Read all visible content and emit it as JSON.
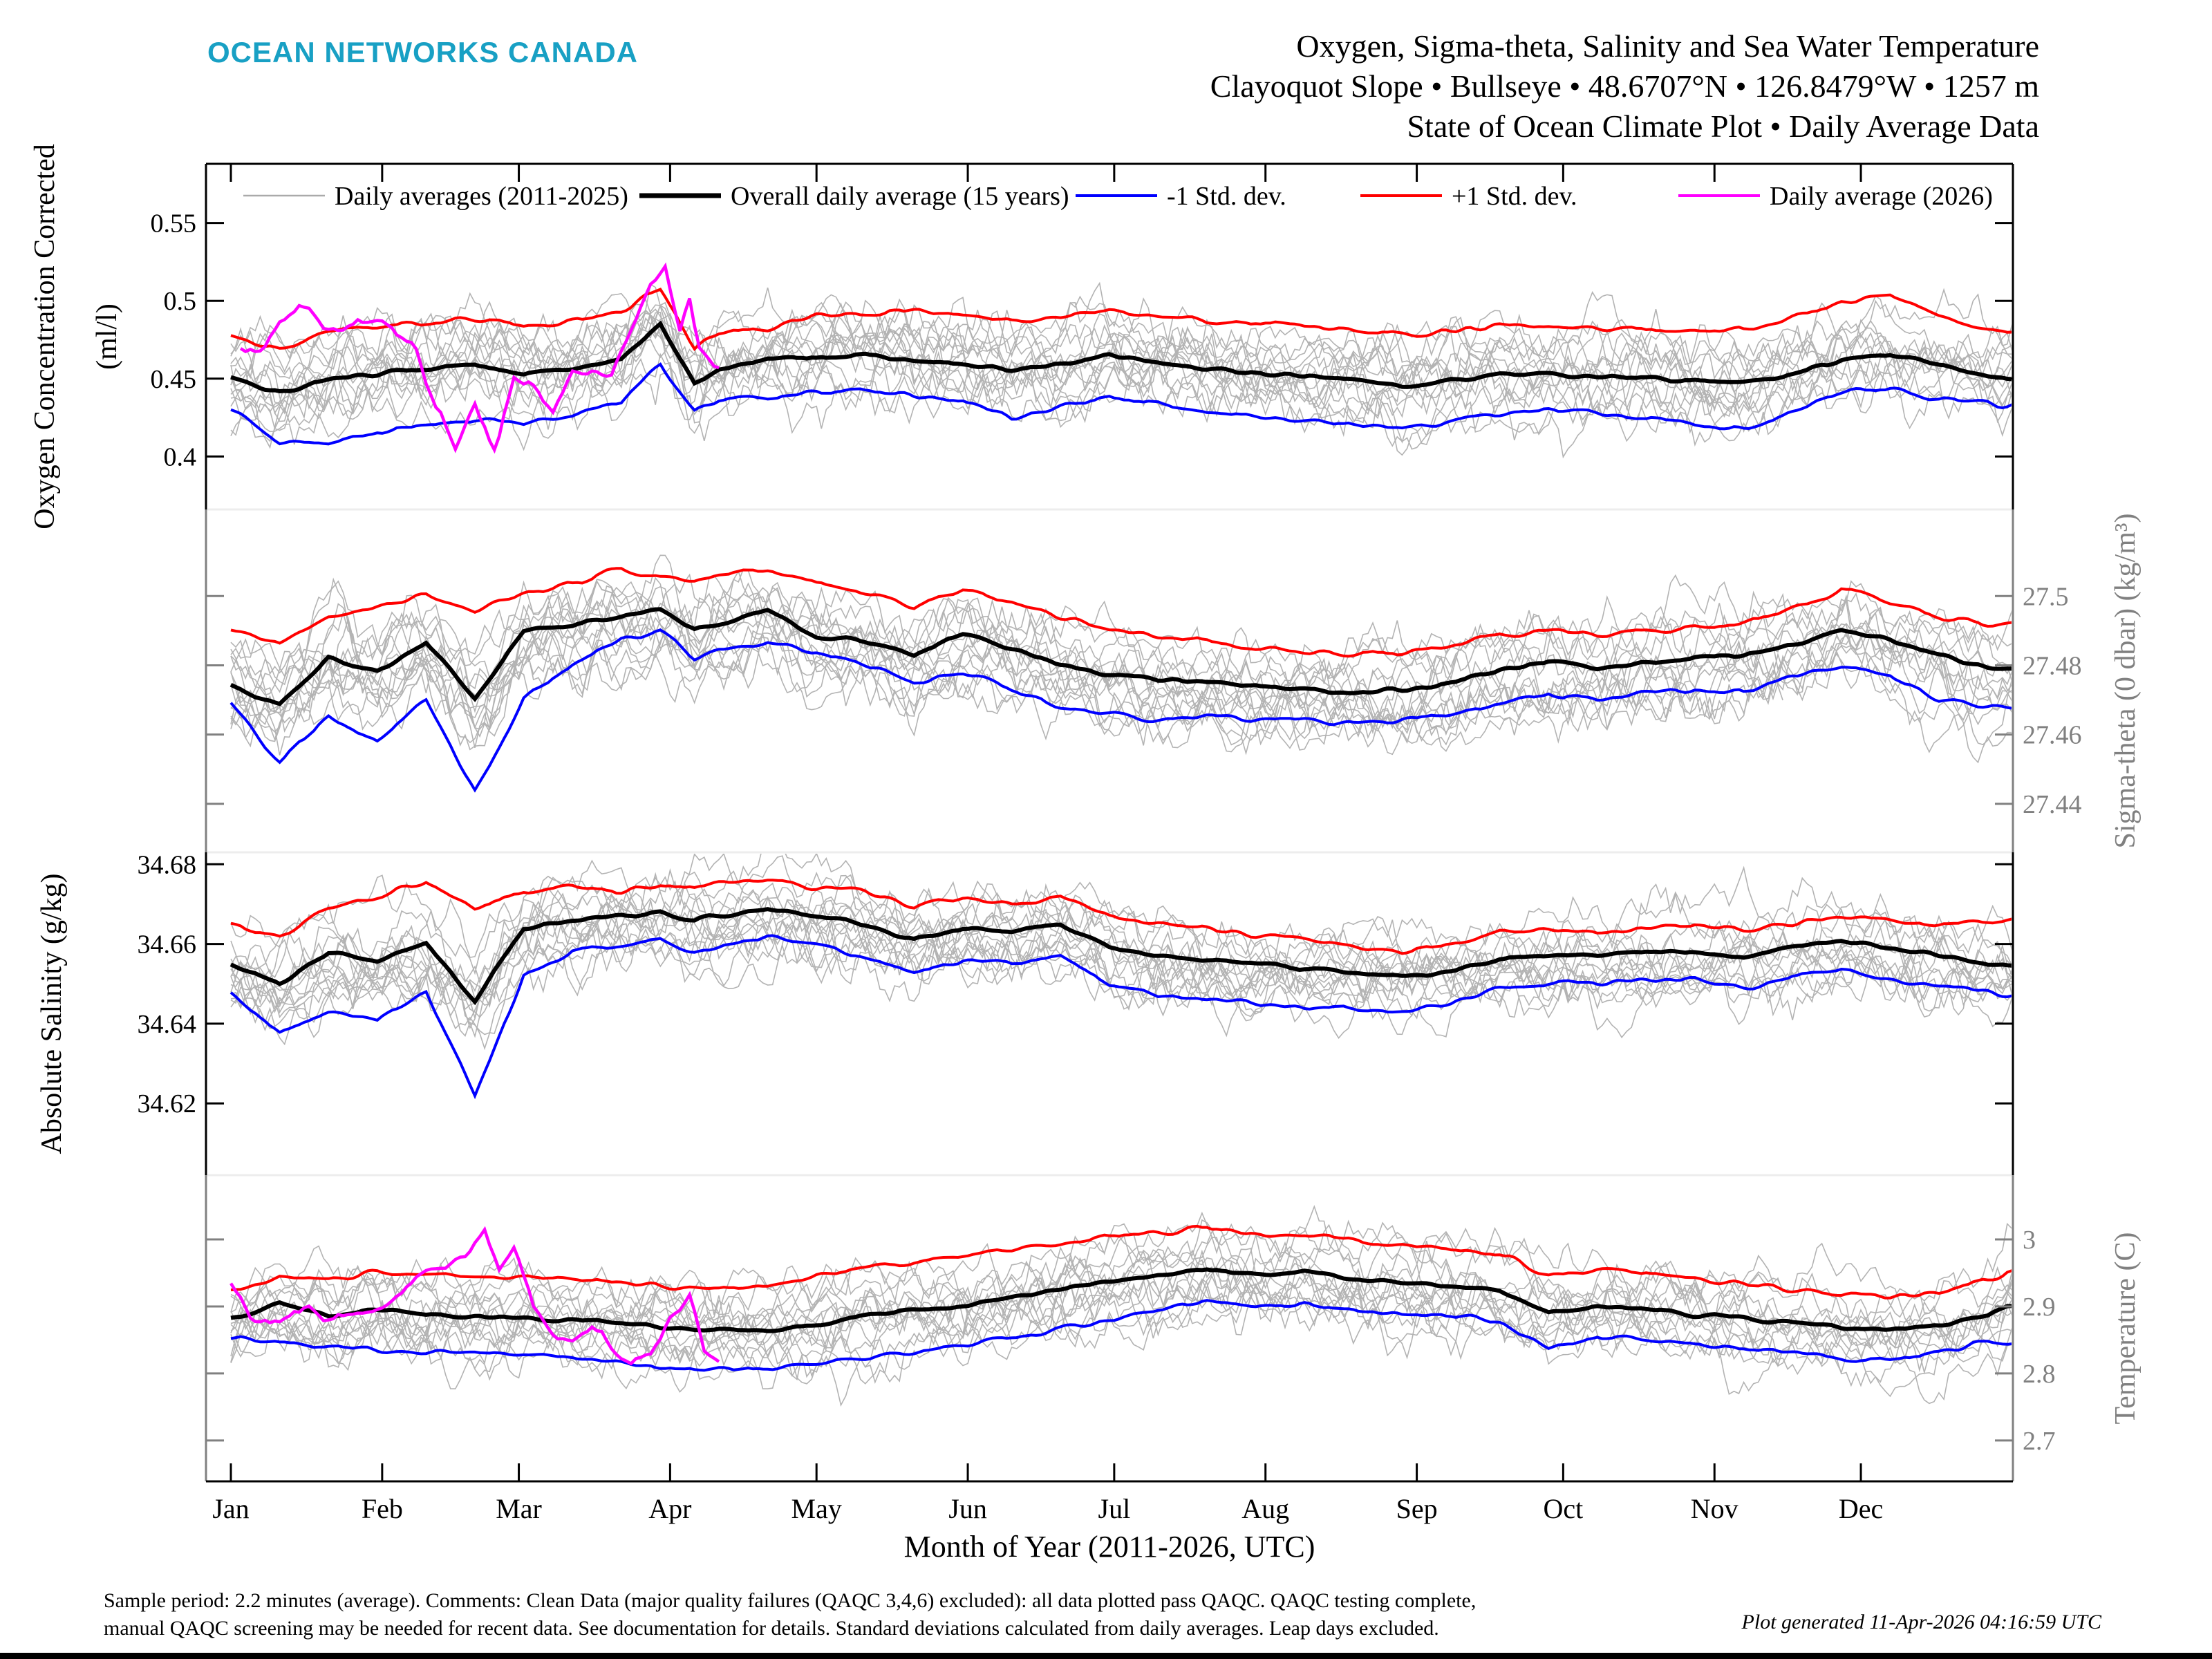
{
  "brand": {
    "name": "OCEAN NETWORKS CANADA",
    "color": "#18a0c4"
  },
  "title": {
    "line1": "Oxygen, Sigma-theta, Salinity and Sea Water Temperature",
    "line2": "Clayoquot Slope • Bullseye • 48.6707°N • 126.8479°W • 1257 m",
    "line3": "State of Ocean Climate Plot • Daily Average Data"
  },
  "legend": [
    {
      "label": "Daily averages (2011-2025)",
      "color": "#aaaaaa",
      "width": 2.5
    },
    {
      "label": "Overall daily average (15 years)",
      "color": "#000000",
      "width": 7
    },
    {
      "label": "-1 Std. dev.",
      "color": "#0000ff",
      "width": 4
    },
    {
      "label": "+1 Std. dev.",
      "color": "#ff0000",
      "width": 4
    },
    {
      "label": "Daily average (2026)",
      "color": "#ff00ff",
      "width": 4
    }
  ],
  "xaxis": {
    "label": "Month of Year (2011-2026, UTC)",
    "months": [
      "Jan",
      "Feb",
      "Mar",
      "Apr",
      "May",
      "Jun",
      "Jul",
      "Aug",
      "Sep",
      "Oct",
      "Nov",
      "Dec"
    ],
    "month_start_days": [
      0,
      31,
      59,
      90,
      120,
      151,
      181,
      212,
      243,
      273,
      304,
      334
    ]
  },
  "footer": {
    "line1": "Sample period: 2.2 minutes (average). Comments: Clean Data (major quality failures (QAQC 3,4,6) excluded): all data plotted pass QAQC. QAQC testing complete,",
    "line2": "manual QAQC screening may be needed for recent data. See documentation for details. Standard deviations calculated from daily averages. Leap days excluded.",
    "generated": "Plot generated 11-Apr-2026 04:16:59 UTC"
  },
  "chart_data": {
    "type": "line",
    "x_unit": "day_of_year",
    "sample_days": [
      0,
      10,
      20,
      30,
      40,
      50,
      60,
      70,
      80,
      88,
      95,
      100,
      110,
      120,
      130,
      140,
      150,
      160,
      170,
      180,
      190,
      200,
      210,
      220,
      230,
      240,
      250,
      260,
      270,
      280,
      290,
      300,
      310,
      320,
      330,
      340,
      350,
      360,
      364
    ],
    "panels": [
      {
        "id": "oxygen",
        "label": "Oxygen Concentration Corrected",
        "unit": "(ml/l)",
        "axis_side": "left",
        "axis_color": "#000000",
        "ticks": [
          0.4,
          0.45,
          0.5,
          0.55
        ],
        "tick_labels": [
          "0.4",
          "0.45",
          "0.5",
          "0.55"
        ],
        "ylim": [
          0.366,
          0.588
        ],
        "series": {
          "mean": [
            0.45,
            0.441,
            0.45,
            0.453,
            0.456,
            0.459,
            0.453,
            0.457,
            0.463,
            0.486,
            0.447,
            0.455,
            0.463,
            0.464,
            0.466,
            0.462,
            0.46,
            0.456,
            0.459,
            0.465,
            0.46,
            0.456,
            0.454,
            0.452,
            0.45,
            0.444,
            0.449,
            0.452,
            0.453,
            0.452,
            0.45,
            0.449,
            0.447,
            0.453,
            0.462,
            0.466,
            0.459,
            0.452,
            0.45
          ],
          "plus1": [
            0.477,
            0.47,
            0.48,
            0.484,
            0.486,
            0.488,
            0.484,
            0.487,
            0.494,
            0.507,
            0.468,
            0.48,
            0.483,
            0.49,
            0.492,
            0.494,
            0.49,
            0.487,
            0.49,
            0.494,
            0.49,
            0.487,
            0.486,
            0.484,
            0.482,
            0.478,
            0.481,
            0.484,
            0.485,
            0.483,
            0.482,
            0.481,
            0.482,
            0.488,
            0.498,
            0.503,
            0.492,
            0.482,
            0.479
          ],
          "minus1": [
            0.431,
            0.409,
            0.408,
            0.416,
            0.421,
            0.424,
            0.421,
            0.427,
            0.435,
            0.46,
            0.43,
            0.436,
            0.437,
            0.441,
            0.443,
            0.44,
            0.436,
            0.425,
            0.432,
            0.438,
            0.434,
            0.429,
            0.426,
            0.424,
            0.421,
            0.417,
            0.422,
            0.427,
            0.43,
            0.427,
            0.424,
            0.421,
            0.417,
            0.428,
            0.441,
            0.443,
            0.437,
            0.434,
            0.432
          ],
          "current_days": [
            2,
            6,
            10,
            14,
            18,
            22,
            26,
            30,
            34,
            38,
            42,
            46,
            50,
            54,
            58,
            62,
            66,
            70,
            74,
            78,
            82,
            86,
            89,
            92,
            94,
            96,
            98,
            100
          ],
          "current": [
            0.468,
            0.471,
            0.488,
            0.499,
            0.489,
            0.479,
            0.488,
            0.487,
            0.478,
            0.468,
            0.43,
            0.408,
            0.432,
            0.404,
            0.45,
            0.447,
            0.428,
            0.452,
            0.455,
            0.452,
            0.482,
            0.512,
            0.523,
            0.478,
            0.502,
            0.47,
            0.462,
            0.457
          ]
        }
      },
      {
        "id": "sigma-theta",
        "label": "Sigma-theta (0 dbar) (kg/m³)",
        "unit": "",
        "axis_side": "right",
        "axis_color": "#808080",
        "ticks": [
          27.44,
          27.46,
          27.48,
          27.5
        ],
        "tick_labels": [
          "27.44",
          "27.46",
          "27.48",
          "27.5"
        ],
        "ylim": [
          27.426,
          27.525
        ],
        "series": {
          "mean": [
            27.474,
            27.469,
            27.482,
            27.478,
            27.487,
            27.471,
            27.49,
            27.492,
            27.494,
            27.496,
            27.49,
            27.492,
            27.496,
            27.488,
            27.487,
            27.483,
            27.489,
            27.485,
            27.48,
            27.477,
            27.476,
            27.475,
            27.474,
            27.473,
            27.472,
            27.473,
            27.475,
            27.479,
            27.481,
            27.479,
            27.481,
            27.482,
            27.483,
            27.486,
            27.49,
            27.487,
            27.483,
            27.479,
            27.479
          ],
          "plus1": [
            27.49,
            27.486,
            27.495,
            27.497,
            27.5,
            27.496,
            27.501,
            27.503,
            27.508,
            27.505,
            27.504,
            27.506,
            27.508,
            27.503,
            27.501,
            27.497,
            27.502,
            27.498,
            27.494,
            27.49,
            27.489,
            27.487,
            27.485,
            27.484,
            27.483,
            27.484,
            27.486,
            27.489,
            27.49,
            27.489,
            27.49,
            27.491,
            27.492,
            27.496,
            27.502,
            27.498,
            27.494,
            27.492,
            27.492
          ],
          "minus1": [
            27.469,
            27.452,
            27.465,
            27.458,
            27.47,
            27.444,
            27.47,
            27.48,
            27.487,
            27.49,
            27.482,
            27.485,
            27.487,
            27.483,
            27.48,
            27.475,
            27.478,
            27.473,
            27.468,
            27.466,
            27.464,
            27.465,
            27.464,
            27.464,
            27.463,
            27.464,
            27.466,
            27.469,
            27.472,
            27.47,
            27.472,
            27.473,
            27.472,
            27.477,
            27.48,
            27.477,
            27.47,
            27.468,
            27.468
          ],
          "current_days": [],
          "current": []
        }
      },
      {
        "id": "salinity",
        "label": "Absolute Salinity (g/kg)",
        "unit": "",
        "axis_side": "left",
        "axis_color": "#000000",
        "ticks": [
          34.62,
          34.64,
          34.66,
          34.68
        ],
        "tick_labels": [
          "34.62",
          "34.64",
          "34.66",
          "34.68"
        ],
        "ylim": [
          34.602,
          34.683
        ],
        "series": {
          "mean": [
            34.655,
            34.65,
            34.658,
            34.656,
            34.66,
            34.646,
            34.664,
            34.666,
            34.667,
            34.668,
            34.666,
            34.667,
            34.669,
            34.667,
            34.665,
            34.661,
            34.664,
            34.663,
            34.665,
            34.659,
            34.657,
            34.656,
            34.655,
            34.654,
            34.653,
            34.652,
            34.653,
            34.656,
            34.657,
            34.657,
            34.658,
            34.658,
            34.657,
            34.659,
            34.661,
            34.659,
            34.657,
            34.655,
            34.655
          ],
          "plus1": [
            34.665,
            34.662,
            34.669,
            34.672,
            34.676,
            34.669,
            34.673,
            34.674,
            34.673,
            34.675,
            34.674,
            34.675,
            34.676,
            34.674,
            34.673,
            34.669,
            34.672,
            34.67,
            34.672,
            34.667,
            34.665,
            34.664,
            34.662,
            34.661,
            34.659,
            34.658,
            34.66,
            34.663,
            34.664,
            34.663,
            34.664,
            34.665,
            34.664,
            34.665,
            34.667,
            34.666,
            34.665,
            34.666,
            34.666
          ],
          "minus1": [
            34.647,
            34.638,
            34.643,
            34.641,
            34.648,
            34.622,
            34.652,
            34.658,
            34.66,
            34.661,
            34.658,
            34.659,
            34.662,
            34.66,
            34.657,
            34.653,
            34.656,
            34.655,
            34.657,
            34.65,
            34.647,
            34.646,
            34.645,
            34.644,
            34.644,
            34.643,
            34.645,
            34.649,
            34.65,
            34.65,
            34.651,
            34.651,
            34.649,
            34.652,
            34.654,
            34.651,
            34.65,
            34.648,
            34.647
          ],
          "current_days": [],
          "current": []
        }
      },
      {
        "id": "temperature",
        "label": "Temperature (C)",
        "unit": "",
        "axis_side": "right",
        "axis_color": "#808080",
        "ticks": [
          2.7,
          2.8,
          2.9,
          3
        ],
        "tick_labels": [
          "2.7",
          "2.8",
          "2.9",
          "3"
        ],
        "ylim": [
          2.639,
          3.096
        ],
        "series": {
          "mean": [
            2.88,
            2.905,
            2.885,
            2.895,
            2.888,
            2.884,
            2.882,
            2.878,
            2.876,
            2.871,
            2.868,
            2.866,
            2.862,
            2.872,
            2.886,
            2.894,
            2.9,
            2.912,
            2.925,
            2.938,
            2.948,
            2.955,
            2.948,
            2.952,
            2.942,
            2.935,
            2.93,
            2.925,
            2.89,
            2.9,
            2.896,
            2.888,
            2.883,
            2.875,
            2.868,
            2.866,
            2.87,
            2.885,
            2.9
          ],
          "plus1": [
            2.92,
            2.945,
            2.94,
            2.95,
            2.948,
            2.945,
            2.943,
            2.94,
            2.935,
            2.932,
            2.93,
            2.928,
            2.93,
            2.945,
            2.958,
            2.966,
            2.975,
            2.985,
            2.995,
            3.005,
            3.01,
            3.018,
            3.007,
            3.01,
            3.0,
            2.99,
            2.985,
            2.98,
            2.945,
            2.955,
            2.95,
            2.94,
            2.932,
            2.925,
            2.918,
            2.917,
            2.92,
            2.94,
            2.95
          ],
          "minus1": [
            2.855,
            2.845,
            2.838,
            2.835,
            2.832,
            2.828,
            2.826,
            2.82,
            2.815,
            2.81,
            2.808,
            2.805,
            2.807,
            2.815,
            2.825,
            2.833,
            2.84,
            2.852,
            2.866,
            2.88,
            2.895,
            2.908,
            2.9,
            2.905,
            2.895,
            2.89,
            2.885,
            2.878,
            2.835,
            2.855,
            2.85,
            2.843,
            2.838,
            2.83,
            2.823,
            2.822,
            2.828,
            2.85,
            2.845
          ],
          "current_days": [
            0,
            4,
            8,
            12,
            16,
            20,
            24,
            28,
            32,
            36,
            40,
            44,
            48,
            52,
            55,
            58,
            62,
            66,
            70,
            74,
            78,
            82,
            86,
            90,
            94,
            97,
            100
          ],
          "current": [
            2.935,
            2.885,
            2.87,
            2.885,
            2.9,
            2.88,
            2.885,
            2.89,
            2.905,
            2.93,
            2.95,
            2.96,
            2.975,
            3.02,
            2.95,
            2.985,
            2.9,
            2.86,
            2.852,
            2.87,
            2.84,
            2.815,
            2.83,
            2.88,
            2.915,
            2.83,
            2.815
          ]
        }
      }
    ]
  }
}
